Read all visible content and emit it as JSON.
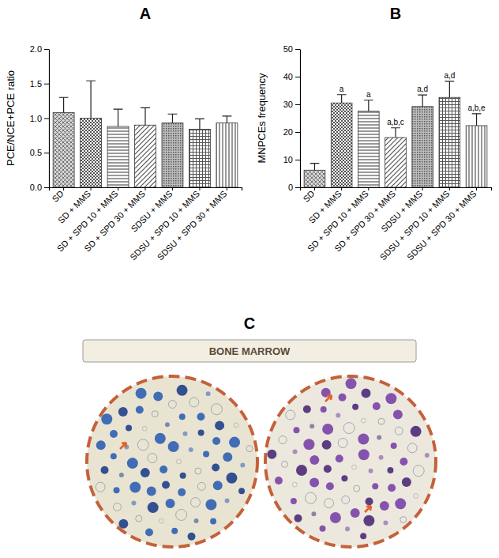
{
  "chart_data": [
    {
      "type": "bar",
      "title": "A",
      "categories": [
        "SD",
        "SD + MMS",
        "SD + SPD 10 + MMS",
        "SD + SPD 30 + MMS",
        "SDSU + MMS",
        "SDSU + SPD 10 + MMS",
        "SDSU + SPD 30 + MMS"
      ],
      "values": [
        1.08,
        1.0,
        0.88,
        0.9,
        0.93,
        0.84,
        0.93
      ],
      "errors": [
        0.22,
        0.54,
        0.25,
        0.25,
        0.13,
        0.15,
        0.1
      ],
      "ylabel": "PCE/NCE+PCE ratio",
      "ylim": [
        0,
        2
      ],
      "yticks": [
        {
          "value": 0,
          "label": "0.0"
        },
        {
          "value": 0.5,
          "label": "0.5"
        },
        {
          "value": 1,
          "label": "1.0"
        },
        {
          "value": 1.5,
          "label": "1.5"
        },
        {
          "value": 2,
          "label": "2.0"
        }
      ],
      "color": "#555555"
    },
    {
      "type": "bar",
      "title": "B",
      "categories": [
        "SD",
        "SD + MMS",
        "SD + SPD 10 + MMS",
        "SD + SPD 30 + MMS",
        "SDSU + MMS",
        "SDSU + SPD 10 + MMS",
        "SDSU + SPD 30 + MMS"
      ],
      "values": [
        6.2,
        30.5,
        27.5,
        18,
        29.2,
        32.5,
        22.3
      ],
      "errors": [
        2.5,
        3,
        4,
        3.5,
        4.2,
        5.8,
        4.3
      ],
      "annotations": [
        null,
        "a",
        "a",
        "a,b,c",
        "a,d",
        "a,d",
        "a,b,e"
      ],
      "ylabel": "MNPCEs frequency",
      "ylim": [
        0,
        50
      ],
      "yticks": [
        0,
        10,
        20,
        30,
        40,
        50
      ],
      "color": "#555555"
    }
  ],
  "panel_c": {
    "label": "C",
    "title": "BONE MARROW"
  }
}
